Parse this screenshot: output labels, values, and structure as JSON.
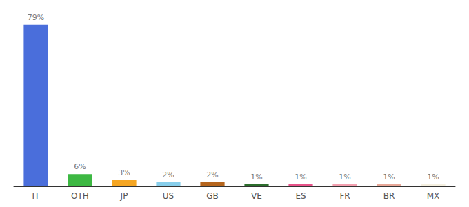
{
  "chart_data": {
    "type": "bar",
    "categories": [
      "IT",
      "OTH",
      "JP",
      "US",
      "GB",
      "VE",
      "ES",
      "FR",
      "BR",
      "MX"
    ],
    "values": [
      79,
      6,
      3,
      2,
      2,
      1,
      1,
      1,
      1,
      1
    ],
    "value_labels": [
      "79%",
      "6%",
      "3%",
      "2%",
      "2%",
      "1%",
      "1%",
      "1%",
      "1%",
      "1%"
    ],
    "colors": [
      "#4a6edb",
      "#3db843",
      "#f5a623",
      "#87ceeb",
      "#b5651d",
      "#2d6e2d",
      "#e8538a",
      "#f4a0b0",
      "#e8a898",
      "#f5f0e0"
    ],
    "ylim": [
      0,
      83
    ],
    "grid": false,
    "data_labels": true,
    "tick_labels": "x"
  }
}
